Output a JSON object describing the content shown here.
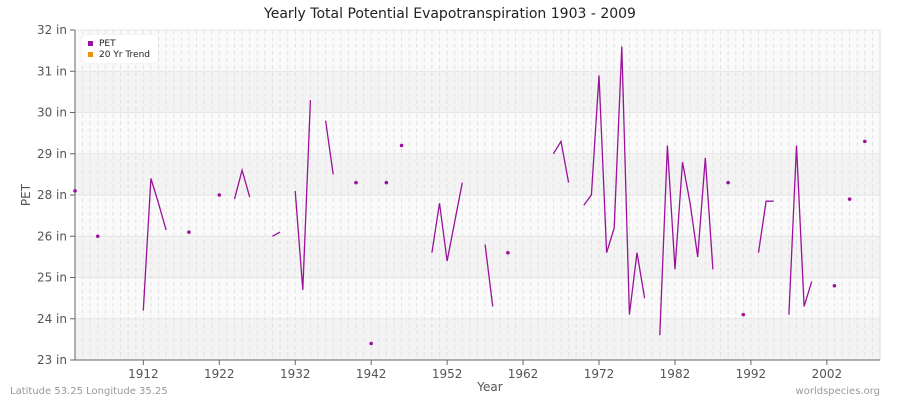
{
  "title": "Yearly Total Potential Evapotranspiration 1903 - 2009",
  "footer": {
    "location": "Latitude 53.25 Longitude 35.25",
    "source": "worldspecies.org"
  },
  "legend": {
    "items": [
      {
        "label": "PET",
        "color": "#9b119b"
      },
      {
        "label": "20 Yr Trend",
        "color": "#f0900c"
      }
    ]
  },
  "colors": {
    "series": "#9b119b",
    "band_dark": "#f3f3f3",
    "band_light": "#fafafa",
    "axis": "#666666"
  },
  "chart_data": {
    "type": "line",
    "title": "Yearly Total Potential Evapotranspiration 1903 - 2009",
    "xlabel": "Year",
    "ylabel": "PET",
    "x_ticks": [
      "1912",
      "1922",
      "1932",
      "1942",
      "1952",
      "1962",
      "1972",
      "1982",
      "1992",
      "2002"
    ],
    "y_ticks": [
      "32 in",
      "31 in",
      "30 in",
      "29 in",
      "28 in",
      "26 in",
      "25 in",
      "24 in",
      "23 in"
    ],
    "xlim": [
      1903,
      2009
    ],
    "grid": true,
    "legend_position": "top-left",
    "series": [
      {
        "name": "PET",
        "segments": [
          [
            [
              1903,
              28.1
            ]
          ],
          [
            [
              1906,
              26.0
            ]
          ],
          [
            [
              1912,
              24.2
            ],
            [
              1913,
              28.4
            ],
            [
              1914,
              27.6
            ],
            [
              1915,
              26.3
            ]
          ],
          [
            [
              1918,
              26.2
            ]
          ],
          [
            [
              1922,
              28.0
            ]
          ],
          [
            [
              1924,
              27.8
            ],
            [
              1925,
              28.6
            ],
            [
              1926,
              27.9
            ]
          ],
          [
            [
              1929,
              26.0
            ],
            [
              1930,
              26.2
            ]
          ],
          [
            [
              1932,
              28.1
            ],
            [
              1933,
              24.7
            ],
            [
              1934,
              30.3
            ]
          ],
          [
            [
              1936,
              29.8
            ],
            [
              1937,
              28.5
            ]
          ],
          [
            [
              1940,
              28.3
            ]
          ],
          [
            [
              1942,
              23.4
            ]
          ],
          [
            [
              1944,
              28.3
            ]
          ],
          [
            [
              1946,
              29.2
            ]
          ],
          [
            [
              1950,
              25.6
            ],
            [
              1951,
              27.6
            ],
            [
              1952,
              25.4
            ],
            [
              1954,
              28.3
            ]
          ],
          [
            [
              1957,
              25.8
            ],
            [
              1958,
              24.3
            ]
          ],
          [
            [
              1960,
              25.6
            ]
          ],
          [
            [
              1966,
              29.0
            ],
            [
              1967,
              29.3
            ],
            [
              1968,
              28.3
            ]
          ],
          [
            [
              1970,
              27.5
            ],
            [
              1971,
              28.0
            ],
            [
              1972,
              30.9
            ],
            [
              1973,
              25.6
            ],
            [
              1974,
              26.4
            ],
            [
              1975,
              31.6
            ],
            [
              1976,
              24.1
            ],
            [
              1977,
              25.6
            ],
            [
              1978,
              24.5
            ]
          ],
          [
            [
              1980,
              23.6
            ],
            [
              1981,
              29.2
            ],
            [
              1982,
              25.2
            ],
            [
              1983,
              28.8
            ],
            [
              1984,
              27.6
            ],
            [
              1985,
              25.5
            ],
            [
              1986,
              28.9
            ],
            [
              1987,
              25.2
            ]
          ],
          [
            [
              1989,
              28.3
            ]
          ],
          [
            [
              1991,
              24.1
            ]
          ],
          [
            [
              1993,
              25.6
            ],
            [
              1994,
              27.7
            ],
            [
              1995,
              27.7
            ]
          ],
          [
            [
              1997,
              24.1
            ],
            [
              1998,
              29.2
            ],
            [
              1999,
              24.3
            ],
            [
              2000,
              24.9
            ]
          ],
          [
            [
              2003,
              24.8
            ]
          ],
          [
            [
              2005,
              27.8
            ]
          ],
          [
            [
              2007,
              29.3
            ]
          ]
        ]
      },
      {
        "name": "20 Yr Trend",
        "segments": []
      }
    ]
  }
}
